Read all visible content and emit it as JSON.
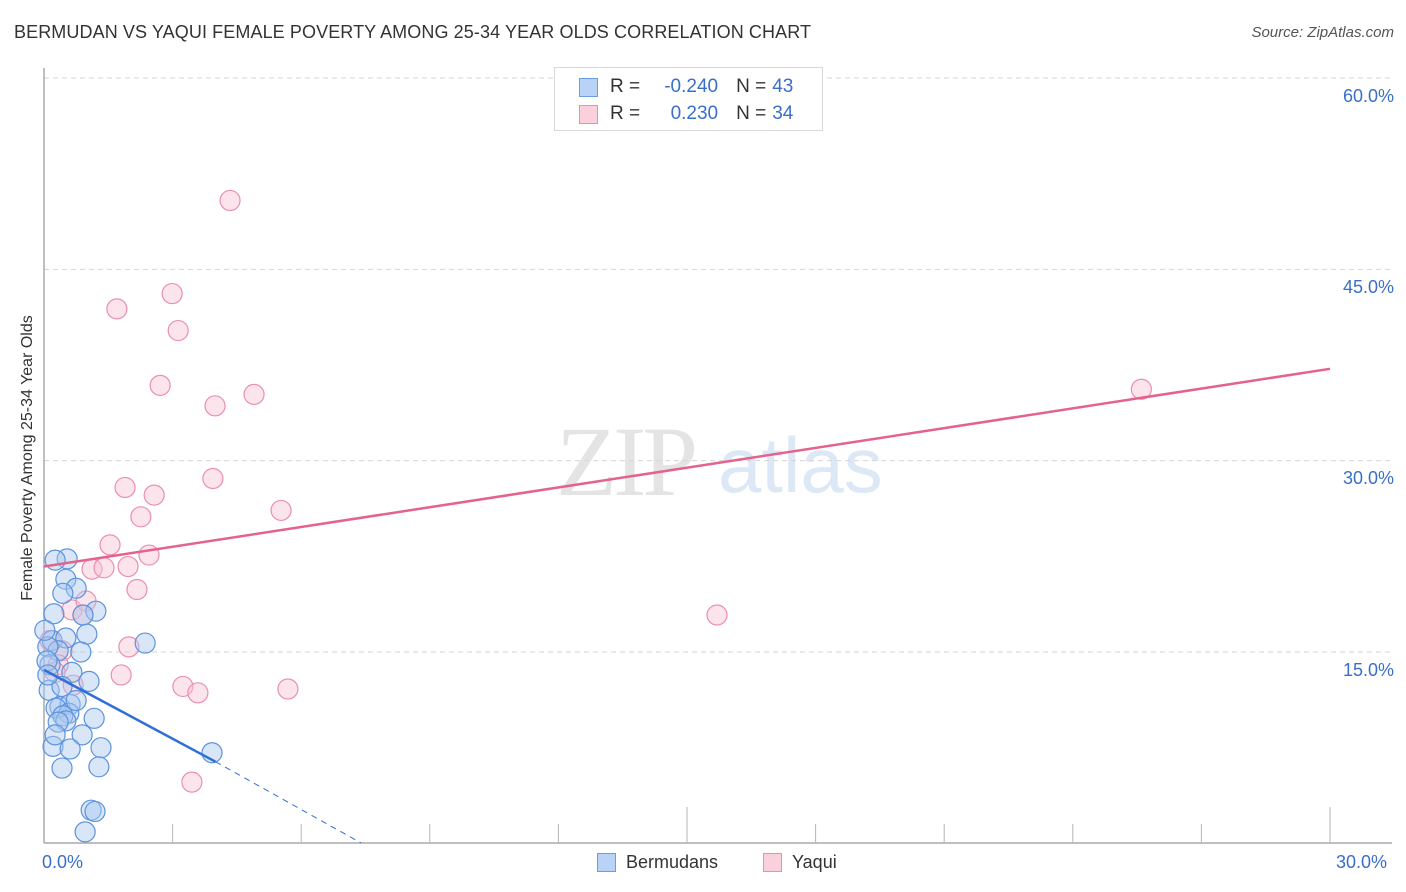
{
  "header": {
    "title": "BERMUDAN VS YAQUI FEMALE POVERTY AMONG 25-34 YEAR OLDS CORRELATION CHART",
    "source": "Source: ZipAtlas.com"
  },
  "watermark": {
    "zip": "ZIP",
    "atlas": "atlas"
  },
  "legend": {
    "rows": [
      {
        "series": "Bermudans",
        "r_label": "R =",
        "r_value": "-0.240",
        "n_label": "N =",
        "n_value": "43",
        "color": "#a9c8f0",
        "border": "#6a9ee0"
      },
      {
        "series": "Yaqui",
        "r_label": "R =",
        "r_value": "0.230",
        "n_label": "N =",
        "n_value": "34",
        "color": "#f9c4d4",
        "border": "#eb8fab"
      }
    ],
    "bottom": [
      {
        "label": "Bermudans",
        "color": "#b8d3f5",
        "border": "#6a9ee0"
      },
      {
        "label": "Yaqui",
        "color": "#fbd0dd",
        "border": "#eb8fab"
      }
    ]
  },
  "axes": {
    "ylabel": "Female Poverty Among 25-34 Year Olds",
    "yticks": [
      "60.0%",
      "45.0%",
      "30.0%",
      "15.0%"
    ],
    "xtick_left": "0.0%",
    "xtick_right": "30.0%"
  },
  "colors": {
    "blue_line": "#2f6fd6",
    "pink_line": "#e5628c",
    "tick_text": "#3a6fc9",
    "grid": "#d6d6d6"
  },
  "chart_data": {
    "type": "scatter",
    "title": "BERMUDAN VS YAQUI FEMALE POVERTY AMONG 25-34 YEAR OLDS CORRELATION CHART",
    "xlabel": "",
    "ylabel": "Female Poverty Among 25-34 Year Olds",
    "xlim": [
      0,
      30
    ],
    "ylim": [
      0,
      62
    ],
    "x_tick_labels": [
      "0.0%",
      "30.0%"
    ],
    "y_tick_labels": [
      "15.0%",
      "30.0%",
      "45.0%",
      "60.0%"
    ],
    "grid": "horizontal dashed at 15, 30, 45, 60",
    "legend_position": "top-center and bottom-center",
    "series": [
      {
        "name": "Bermudans",
        "R": -0.24,
        "N": 43,
        "color": "#6a9ee0",
        "points": [
          [
            0.54,
            22.3
          ],
          [
            0.26,
            22.2
          ],
          [
            0.51,
            20.7
          ],
          [
            0.75,
            20.0
          ],
          [
            0.44,
            19.6
          ],
          [
            0.23,
            18.0
          ],
          [
            1.21,
            18.2
          ],
          [
            0.91,
            17.9
          ],
          [
            0.19,
            15.9
          ],
          [
            0.51,
            16.1
          ],
          [
            1.0,
            16.4
          ],
          [
            2.36,
            15.7
          ],
          [
            0.86,
            15.0
          ],
          [
            0.33,
            15.1
          ],
          [
            0.09,
            15.4
          ],
          [
            0.14,
            14.0
          ],
          [
            0.65,
            13.4
          ],
          [
            1.05,
            12.7
          ],
          [
            0.12,
            12.0
          ],
          [
            0.42,
            12.3
          ],
          [
            0.37,
            10.7
          ],
          [
            0.61,
            10.9
          ],
          [
            0.28,
            10.6
          ],
          [
            0.58,
            10.2
          ],
          [
            0.44,
            10.0
          ],
          [
            0.51,
            9.6
          ],
          [
            1.17,
            9.8
          ],
          [
            0.89,
            8.5
          ],
          [
            0.21,
            7.6
          ],
          [
            0.61,
            7.4
          ],
          [
            1.33,
            7.5
          ],
          [
            3.92,
            7.1
          ],
          [
            0.42,
            5.9
          ],
          [
            1.28,
            6.0
          ],
          [
            1.1,
            2.6
          ],
          [
            1.19,
            2.5
          ],
          [
            0.96,
            0.9
          ],
          [
            0.02,
            16.7
          ],
          [
            0.07,
            14.3
          ],
          [
            0.09,
            13.2
          ],
          [
            0.33,
            9.5
          ],
          [
            0.26,
            8.5
          ],
          [
            0.75,
            11.2
          ]
        ],
        "trend": {
          "x": [
            0,
            4.0
          ],
          "y": [
            13.6,
            6.4
          ],
          "dashed_extension": {
            "x": [
              4.0,
              7.4
            ],
            "y": [
              6.4,
              0
            ]
          }
        }
      },
      {
        "name": "Yaqui",
        "R": 0.23,
        "N": 34,
        "color": "#eb8fab",
        "points": [
          [
            4.34,
            50.4
          ],
          [
            2.99,
            43.1
          ],
          [
            1.7,
            41.9
          ],
          [
            3.13,
            40.2
          ],
          [
            2.71,
            35.9
          ],
          [
            4.9,
            35.2
          ],
          [
            3.99,
            34.3
          ],
          [
            25.6,
            35.6
          ],
          [
            3.94,
            28.6
          ],
          [
            1.89,
            27.9
          ],
          [
            2.57,
            27.3
          ],
          [
            5.53,
            26.1
          ],
          [
            2.26,
            25.6
          ],
          [
            1.54,
            23.4
          ],
          [
            2.45,
            22.6
          ],
          [
            1.96,
            21.7
          ],
          [
            1.12,
            21.5
          ],
          [
            1.4,
            21.6
          ],
          [
            2.17,
            19.9
          ],
          [
            15.7,
            17.9
          ],
          [
            0.65,
            18.3
          ],
          [
            0.98,
            19.0
          ],
          [
            0.91,
            17.9
          ],
          [
            1.98,
            15.4
          ],
          [
            0.42,
            15.1
          ],
          [
            0.33,
            14.0
          ],
          [
            0.26,
            13.4
          ],
          [
            1.8,
            13.2
          ],
          [
            3.24,
            12.3
          ],
          [
            3.59,
            11.8
          ],
          [
            5.69,
            12.1
          ],
          [
            0.68,
            12.4
          ],
          [
            3.45,
            4.8
          ],
          [
            0.14,
            15.9
          ]
        ],
        "trend": {
          "x": [
            0,
            30
          ],
          "y": [
            21.7,
            37.2
          ]
        }
      }
    ]
  }
}
